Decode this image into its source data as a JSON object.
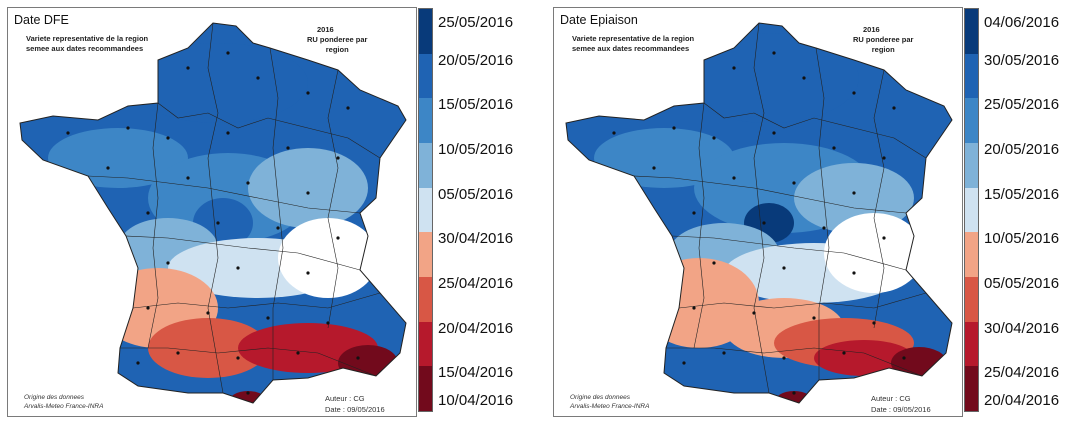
{
  "maps": [
    {
      "id": "dfe",
      "title": "Date DFE",
      "subtitle_line1": "Variete representative de la region",
      "subtitle_line2": "semee aux dates recommandees",
      "year": "2016",
      "ru_line1": "RU ponderee par",
      "ru_line2": "region",
      "origin_line1": "Origine des donnees",
      "origin_line2": "Arvalis-Meteo France-INRA",
      "author": "Auteur : CG",
      "date": "Date : 09/05/2016",
      "legend": {
        "labels": [
          "25/05/2016",
          "20/05/2016",
          "15/05/2016",
          "10/05/2016",
          "05/05/2016",
          "30/04/2016",
          "25/04/2016",
          "20/04/2016",
          "15/04/2016",
          "10/04/2016"
        ],
        "colors": [
          "#083a7a",
          "#1f63b3",
          "#3d86c6",
          "#7fb2d8",
          "#cfe2f1",
          "#f2a486",
          "#d85745",
          "#b6192c",
          "#720a1c"
        ]
      }
    },
    {
      "id": "epiaison",
      "title": "Date Epiaison",
      "subtitle_line1": "Variete representative de la region",
      "subtitle_line2": "semee aux dates recommandees",
      "year": "2016",
      "ru_line1": "RU ponderee par",
      "ru_line2": "region",
      "origin_line1": "Origine des donnees",
      "origin_line2": "Arvalis-Meteo France-INRA",
      "author": "Auteur : CG",
      "date": "Date : 09/05/2016",
      "legend": {
        "labels": [
          "04/06/2016",
          "30/05/2016",
          "25/05/2016",
          "20/05/2016",
          "15/05/2016",
          "10/05/2016",
          "05/05/2016",
          "30/04/2016",
          "25/04/2016",
          "20/04/2016"
        ],
        "colors": [
          "#083a7a",
          "#1f63b3",
          "#3d86c6",
          "#7fb2d8",
          "#cfe2f1",
          "#f2a486",
          "#d85745",
          "#b6192c",
          "#720a1c"
        ]
      }
    }
  ]
}
